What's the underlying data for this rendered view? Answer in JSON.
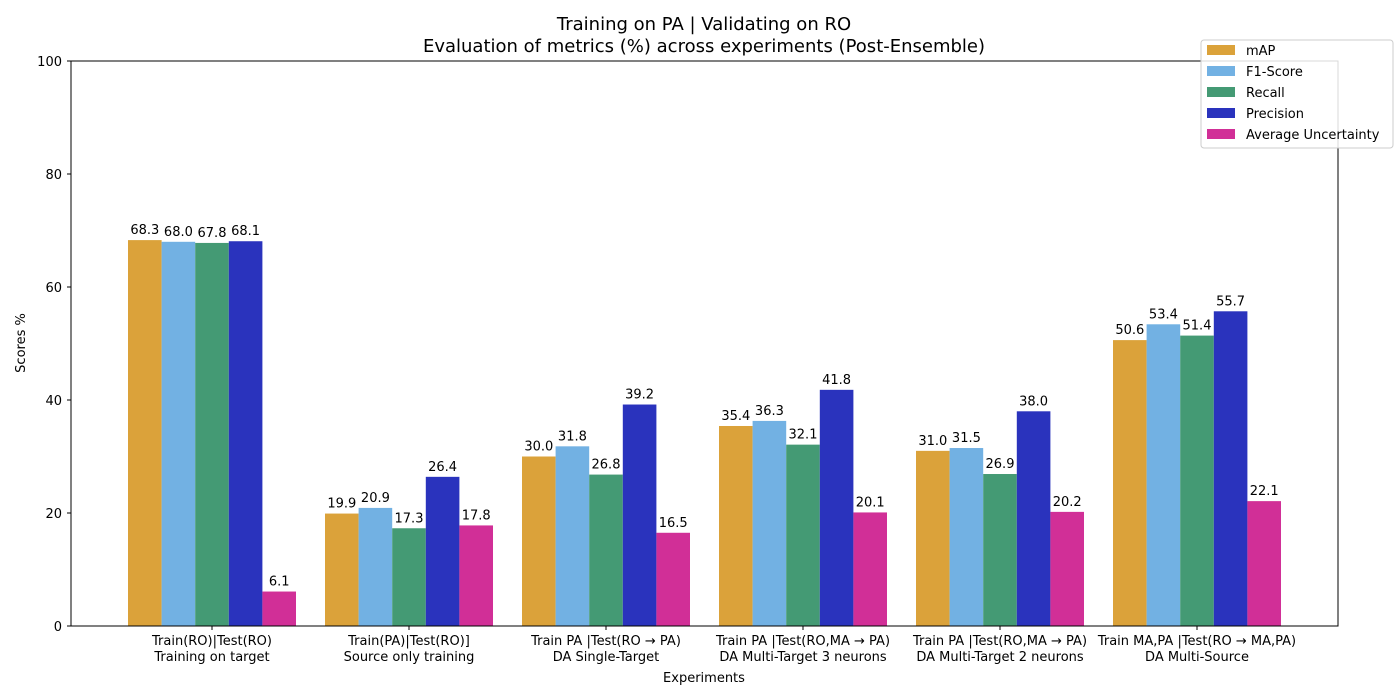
{
  "chart_data": {
    "type": "bar",
    "title": "Training on PA | Validating on RO",
    "subtitle": "Evaluation of metrics (%) across experiments (Post-Ensemble)",
    "xlabel": "Experiments",
    "ylabel": "Scores %",
    "ylim": [
      0,
      100
    ],
    "yticks": [
      "0",
      "20",
      "40",
      "60",
      "80",
      "100"
    ],
    "grid": false,
    "legend_position": "top-right",
    "categories": [
      [
        "Train(RO)|Test(RO)",
        "Training on target"
      ],
      [
        "Train(PA)|Test(RO)]",
        "Source only training"
      ],
      [
        "Train PA |Test(RO → PA)",
        "DA Single-Target"
      ],
      [
        "Train PA |Test(RO,MA → PA)",
        "DA Multi-Target 3 neurons"
      ],
      [
        "Train PA |Test(RO,MA → PA)",
        "DA Multi-Target 2 neurons"
      ],
      [
        "Train MA,PA |Test(RO → MA,PA)",
        "DA Multi-Source"
      ]
    ],
    "series": [
      {
        "name": "mAP",
        "color": "#dba23a",
        "values": [
          68.3,
          19.9,
          30.0,
          35.4,
          31.0,
          50.6
        ]
      },
      {
        "name": "F1-Score",
        "color": "#72b1e3",
        "values": [
          68.0,
          20.9,
          31.8,
          36.3,
          31.5,
          53.4
        ]
      },
      {
        "name": "Recall",
        "color": "#449a74",
        "values": [
          67.8,
          17.3,
          26.8,
          32.1,
          26.9,
          51.4
        ]
      },
      {
        "name": "Precision",
        "color": "#2a33bd",
        "values": [
          68.1,
          26.4,
          39.2,
          41.8,
          38.0,
          55.7
        ]
      },
      {
        "name": "Average Uncertainty",
        "color": "#d12f97",
        "values": [
          6.1,
          17.8,
          16.5,
          20.1,
          20.2,
          22.1
        ]
      }
    ]
  }
}
